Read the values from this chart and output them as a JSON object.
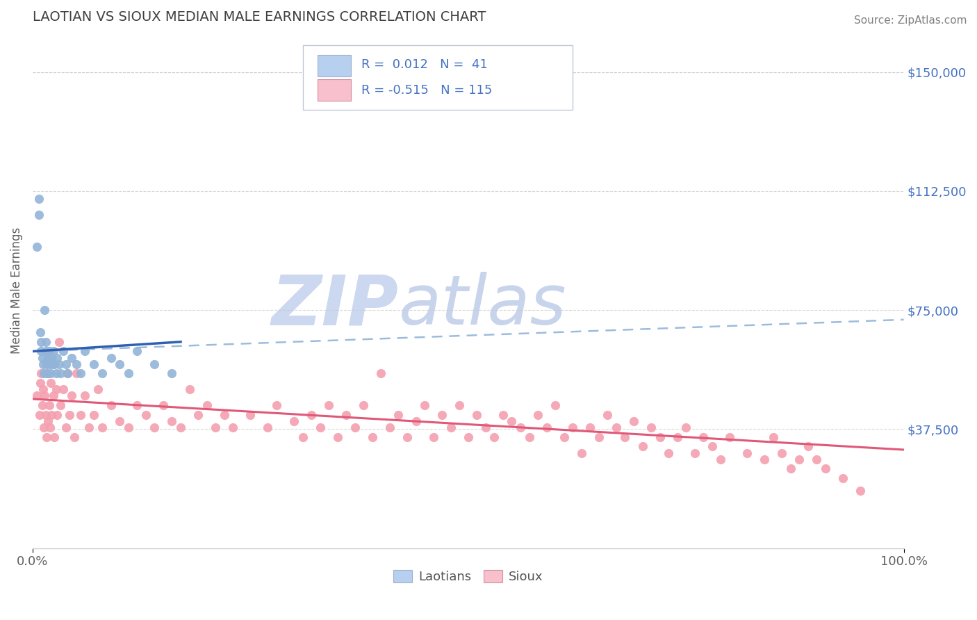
{
  "title": "LAOTIAN VS SIOUX MEDIAN MALE EARNINGS CORRELATION CHART",
  "source": "Source: ZipAtlas.com",
  "ylabel": "Median Male Earnings",
  "xlim": [
    0.0,
    1.0
  ],
  "ylim": [
    0,
    162500
  ],
  "yticks": [
    37500,
    75000,
    112500,
    150000
  ],
  "ytick_labels": [
    "$37,500",
    "$75,000",
    "$112,500",
    "$150,000"
  ],
  "laotian_color": "#92b4d8",
  "laotian_edge_color": "#6a9ec8",
  "sioux_color": "#f4a0b0",
  "sioux_edge_color": "#e87090",
  "laotian_trend_color": "#3060b0",
  "laotian_dashed_color": "#8ab0d8",
  "sioux_trend_color": "#e05878",
  "legend_box_color_laotian": "#b8d0f0",
  "legend_box_color_sioux": "#f8c0cc",
  "legend_text_color_RN": "#4472c4",
  "legend_label_color": "#555555",
  "title_color": "#404040",
  "axis_label_color": "#606060",
  "tick_color_y": "#4472c4",
  "tick_color_x": "#606060",
  "grid_color": "#c8c8c8",
  "watermark_zip_color": "#ccd8f0",
  "watermark_atlas_color": "#c8d4ec",
  "source_color": "#808080",
  "laotian_R": 0.012,
  "laotian_N": 41,
  "sioux_R": -0.515,
  "sioux_N": 115,
  "lao_x": [
    0.005,
    0.007,
    0.007,
    0.009,
    0.01,
    0.01,
    0.011,
    0.012,
    0.013,
    0.014,
    0.015,
    0.015,
    0.016,
    0.017,
    0.018,
    0.019,
    0.02,
    0.021,
    0.022,
    0.023,
    0.024,
    0.025,
    0.027,
    0.028,
    0.03,
    0.032,
    0.035,
    0.038,
    0.04,
    0.045,
    0.05,
    0.055,
    0.06,
    0.07,
    0.08,
    0.09,
    0.1,
    0.11,
    0.12,
    0.14,
    0.16
  ],
  "lao_y": [
    95000,
    105000,
    110000,
    68000,
    62000,
    65000,
    60000,
    58000,
    55000,
    75000,
    62000,
    65000,
    58000,
    55000,
    60000,
    62000,
    58000,
    55000,
    60000,
    58000,
    62000,
    58000,
    55000,
    60000,
    58000,
    55000,
    62000,
    58000,
    55000,
    60000,
    58000,
    55000,
    62000,
    58000,
    55000,
    60000,
    58000,
    55000,
    62000,
    58000,
    55000
  ],
  "sioux_x": [
    0.005,
    0.008,
    0.009,
    0.01,
    0.011,
    0.012,
    0.013,
    0.014,
    0.015,
    0.016,
    0.017,
    0.018,
    0.019,
    0.02,
    0.021,
    0.022,
    0.024,
    0.025,
    0.027,
    0.028,
    0.03,
    0.032,
    0.035,
    0.038,
    0.04,
    0.042,
    0.045,
    0.048,
    0.05,
    0.055,
    0.06,
    0.065,
    0.07,
    0.075,
    0.08,
    0.09,
    0.1,
    0.11,
    0.12,
    0.13,
    0.14,
    0.15,
    0.16,
    0.17,
    0.18,
    0.19,
    0.2,
    0.21,
    0.22,
    0.23,
    0.25,
    0.27,
    0.28,
    0.3,
    0.31,
    0.32,
    0.33,
    0.34,
    0.35,
    0.36,
    0.37,
    0.38,
    0.39,
    0.4,
    0.41,
    0.42,
    0.43,
    0.44,
    0.45,
    0.46,
    0.47,
    0.48,
    0.49,
    0.5,
    0.51,
    0.52,
    0.53,
    0.54,
    0.55,
    0.56,
    0.57,
    0.58,
    0.59,
    0.6,
    0.61,
    0.62,
    0.63,
    0.64,
    0.65,
    0.66,
    0.67,
    0.68,
    0.69,
    0.7,
    0.71,
    0.72,
    0.73,
    0.74,
    0.75,
    0.76,
    0.77,
    0.78,
    0.79,
    0.8,
    0.82,
    0.84,
    0.85,
    0.86,
    0.87,
    0.88,
    0.89,
    0.9,
    0.91,
    0.93,
    0.95
  ],
  "sioux_y": [
    48000,
    42000,
    52000,
    55000,
    45000,
    50000,
    38000,
    48000,
    42000,
    35000,
    55000,
    40000,
    45000,
    38000,
    52000,
    42000,
    48000,
    35000,
    50000,
    42000,
    65000,
    45000,
    50000,
    38000,
    55000,
    42000,
    48000,
    35000,
    55000,
    42000,
    48000,
    38000,
    42000,
    50000,
    38000,
    45000,
    40000,
    38000,
    45000,
    42000,
    38000,
    45000,
    40000,
    38000,
    50000,
    42000,
    45000,
    38000,
    42000,
    38000,
    42000,
    38000,
    45000,
    40000,
    35000,
    42000,
    38000,
    45000,
    35000,
    42000,
    38000,
    45000,
    35000,
    55000,
    38000,
    42000,
    35000,
    40000,
    45000,
    35000,
    42000,
    38000,
    45000,
    35000,
    42000,
    38000,
    35000,
    42000,
    40000,
    38000,
    35000,
    42000,
    38000,
    45000,
    35000,
    38000,
    30000,
    38000,
    35000,
    42000,
    38000,
    35000,
    40000,
    32000,
    38000,
    35000,
    30000,
    35000,
    38000,
    30000,
    35000,
    32000,
    28000,
    35000,
    30000,
    28000,
    35000,
    30000,
    25000,
    28000,
    32000,
    28000,
    25000,
    22000,
    18000
  ]
}
